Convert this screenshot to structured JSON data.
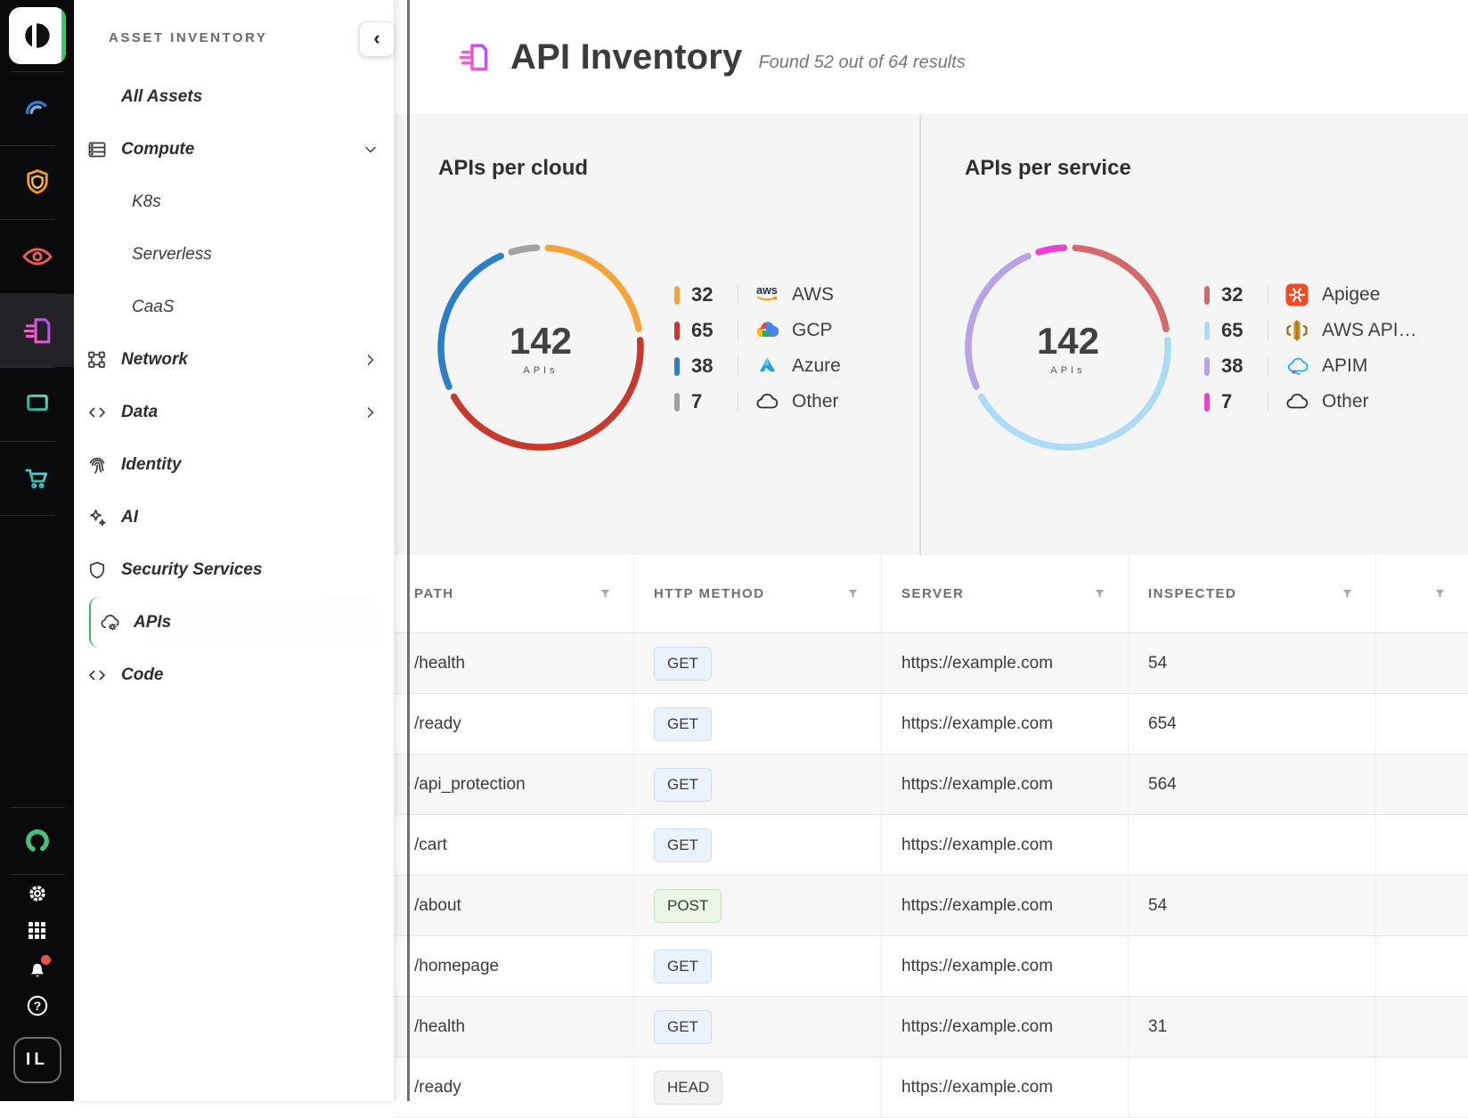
{
  "rail": {
    "logo": "app-logo",
    "items": [
      {
        "icon": "gauge-icon",
        "selected": false
      },
      {
        "icon": "shield-badge-icon",
        "selected": false
      },
      {
        "icon": "eye-icon",
        "selected": false
      },
      {
        "icon": "api-docs-icon",
        "selected": true
      },
      {
        "icon": "monitor-icon",
        "selected": false
      },
      {
        "icon": "cart-icon",
        "selected": false
      }
    ],
    "bottom_items": [
      {
        "icon": "gear-icon",
        "badge": false
      },
      {
        "icon": "apps-grid-icon",
        "badge": false
      },
      {
        "icon": "notifications-bell-icon",
        "badge": true
      },
      {
        "icon": "help-icon",
        "badge": false
      }
    ],
    "ring_icon": "ring-icon",
    "avatar_label": "IL"
  },
  "sidebar": {
    "title": "ASSET INVENTORY",
    "collapse_glyph": "‹",
    "items": [
      {
        "label": "All Assets",
        "type": "plain"
      },
      {
        "label": "Compute",
        "type": "item",
        "icon": "server",
        "chevron": "down"
      },
      {
        "label": "K8s",
        "type": "sub"
      },
      {
        "label": "Serverless",
        "type": "sub"
      },
      {
        "label": "CaaS",
        "type": "sub"
      },
      {
        "label": "Network",
        "type": "item",
        "icon": "network",
        "chevron": "right"
      },
      {
        "label": "Data",
        "type": "item",
        "icon": "code",
        "chevron": "right"
      },
      {
        "label": "Identity",
        "type": "item",
        "icon": "fingerprint"
      },
      {
        "label": "AI",
        "type": "item",
        "icon": "sparkles"
      },
      {
        "label": "Security Services",
        "type": "item",
        "icon": "shield"
      },
      {
        "label": "APIs",
        "type": "item",
        "icon": "cloud-gear",
        "selected": true
      },
      {
        "label": "Code",
        "type": "item",
        "icon": "code"
      }
    ]
  },
  "header": {
    "title": "API Inventory",
    "results_text": "Found 52 out of 64 results"
  },
  "chart_data": [
    {
      "type": "donut",
      "title": "APIs per cloud",
      "center_value": "142",
      "center_label": "APIs",
      "total": 142,
      "legend_position": "right",
      "segments": [
        {
          "label": "AWS",
          "value": 32,
          "color": "#F2A33C",
          "icon": "aws"
        },
        {
          "label": "GCP",
          "value": 65,
          "color": "#C6392F",
          "icon": "gcp"
        },
        {
          "label": "Azure",
          "value": 38,
          "color": "#2E7EC6",
          "icon": "azure"
        },
        {
          "label": "Other",
          "value": 7,
          "color": "#A2A2A2",
          "icon": "cloud-outline"
        }
      ]
    },
    {
      "type": "donut",
      "title": "APIs per service",
      "center_value": "142",
      "center_label": "APIs",
      "total": 142,
      "legend_position": "right",
      "segments": [
        {
          "label": "Apigee",
          "value": 32,
          "color": "#D4696B",
          "icon": "apigee"
        },
        {
          "label": "AWS API…",
          "value": 65,
          "color": "#ABDBF5",
          "icon": "aws-api-gateway"
        },
        {
          "label": "APIM",
          "value": 38,
          "color": "#B7A3E6",
          "icon": "apim"
        },
        {
          "label": "Other",
          "value": 7,
          "color": "#ED3FD1",
          "icon": "cloud-outline"
        }
      ]
    }
  ],
  "table": {
    "columns": [
      {
        "label": "PATH"
      },
      {
        "label": "HTTP METHOD"
      },
      {
        "label": "SERVER"
      },
      {
        "label": "INSPECTED"
      },
      {
        "label": ""
      }
    ],
    "rows": [
      {
        "path": "/health",
        "method": "GET",
        "server": "https://example.com",
        "inspected": "54"
      },
      {
        "path": "/ready",
        "method": "GET",
        "server": "https://example.com",
        "inspected": "654"
      },
      {
        "path": "/api_protection",
        "method": "GET",
        "server": "https://example.com",
        "inspected": "564"
      },
      {
        "path": "/cart",
        "method": "GET",
        "server": "https://example.com",
        "inspected": ""
      },
      {
        "path": "/about",
        "method": "POST",
        "server": "https://example.com",
        "inspected": "54"
      },
      {
        "path": "/homepage",
        "method": "GET",
        "server": "https://example.com",
        "inspected": ""
      },
      {
        "path": "/health",
        "method": "GET",
        "server": "https://example.com",
        "inspected": "31"
      },
      {
        "path": "/ready",
        "method": "HEAD",
        "server": "https://example.com",
        "inspected": ""
      }
    ]
  }
}
